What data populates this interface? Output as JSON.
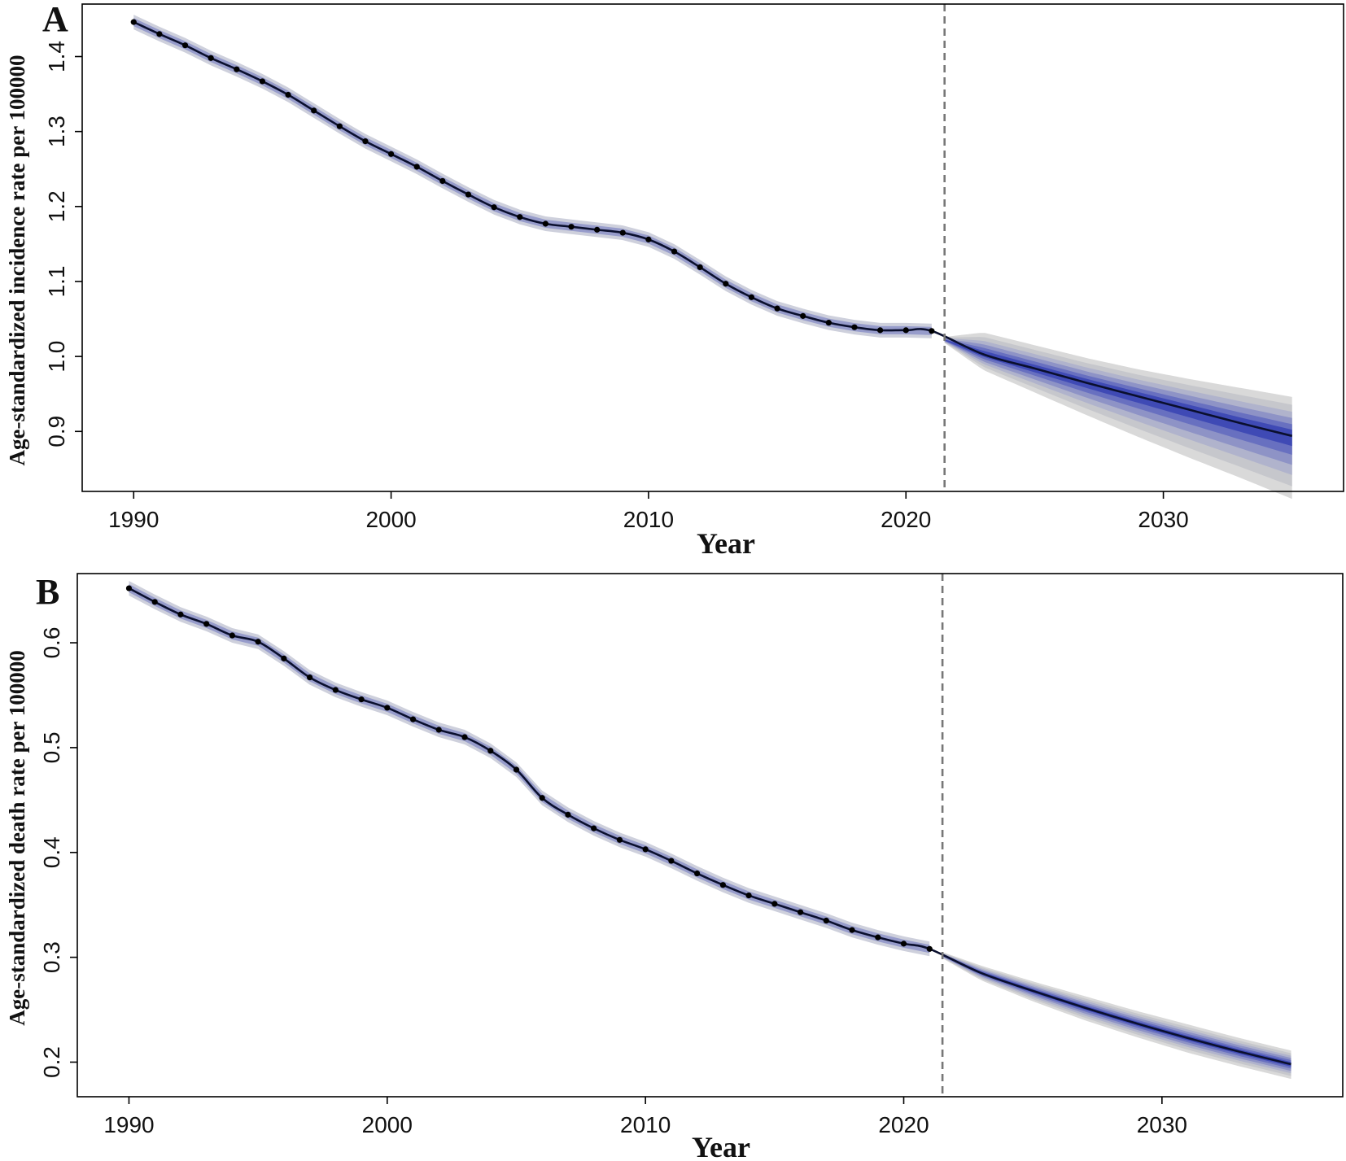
{
  "chart_data": [
    {
      "type": "line",
      "panel_label": "A",
      "xlabel": "Year",
      "ylabel": "Age-standardized incidence rate per 100000",
      "xlim": [
        1988,
        2037
      ],
      "ylim": [
        0.82,
        1.47
      ],
      "x_ticks": [
        1990,
        2000,
        2010,
        2020,
        2030
      ],
      "y_ticks": [
        0.9,
        1.0,
        1.1,
        1.2,
        1.3,
        1.4
      ],
      "y_tick_labels": [
        "0.9",
        "1.0",
        "1.1",
        "1.2",
        "1.3",
        "1.4"
      ],
      "projection_start": 2021.5,
      "observed": {
        "x": [
          1990,
          1991,
          1992,
          1993,
          1994,
          1995,
          1996,
          1997,
          1998,
          1999,
          2000,
          2001,
          2002,
          2003,
          2004,
          2005,
          2006,
          2007,
          2008,
          2009,
          2010,
          2011,
          2012,
          2013,
          2014,
          2015,
          2016,
          2017,
          2018,
          2019,
          2020,
          2021
        ],
        "y": [
          1.446,
          1.43,
          1.415,
          1.398,
          1.383,
          1.367,
          1.349,
          1.328,
          1.307,
          1.287,
          1.27,
          1.253,
          1.234,
          1.216,
          1.199,
          1.186,
          1.177,
          1.173,
          1.169,
          1.165,
          1.156,
          1.14,
          1.119,
          1.097,
          1.079,
          1.064,
          1.054,
          1.045,
          1.039,
          1.035,
          1.035,
          1.034
        ]
      },
      "projection": {
        "x": [
          2021.5,
          2023,
          2025,
          2027,
          2029,
          2031,
          2033,
          2035
        ],
        "y": [
          1.022,
          1.003,
          0.984,
          0.965,
          0.947,
          0.929,
          0.911,
          0.894
        ],
        "lower_95": [
          1.018,
          0.982,
          0.952,
          0.922,
          0.893,
          0.865,
          0.838,
          0.81
        ],
        "upper_95": [
          1.026,
          1.032,
          1.015,
          0.998,
          0.983,
          0.97,
          0.958,
          0.946
        ]
      }
    },
    {
      "type": "line",
      "panel_label": "B",
      "xlabel": "Year",
      "ylabel": "Age-standardized death rate per 100000",
      "xlim": [
        1988,
        2037
      ],
      "ylim": [
        0.167,
        0.666
      ],
      "x_ticks": [
        1990,
        2000,
        2010,
        2020,
        2030
      ],
      "y_ticks": [
        0.2,
        0.3,
        0.4,
        0.5,
        0.6
      ],
      "y_tick_labels": [
        "0.2",
        "0.3",
        "0.4",
        "0.5",
        "0.6"
      ],
      "projection_start": 2021.5,
      "observed": {
        "x": [
          1990,
          1991,
          1992,
          1993,
          1994,
          1995,
          1996,
          1997,
          1998,
          1999,
          2000,
          2001,
          2002,
          2003,
          2004,
          2005,
          2006,
          2007,
          2008,
          2009,
          2010,
          2011,
          2012,
          2013,
          2014,
          2015,
          2016,
          2017,
          2018,
          2019,
          2020,
          2021
        ],
        "y": [
          0.652,
          0.639,
          0.627,
          0.618,
          0.607,
          0.601,
          0.585,
          0.567,
          0.555,
          0.546,
          0.538,
          0.527,
          0.517,
          0.51,
          0.497,
          0.479,
          0.452,
          0.436,
          0.423,
          0.412,
          0.403,
          0.392,
          0.38,
          0.369,
          0.359,
          0.351,
          0.343,
          0.335,
          0.326,
          0.319,
          0.313,
          0.308
        ]
      },
      "projection": {
        "x": [
          2021.5,
          2023,
          2025,
          2027,
          2029,
          2031,
          2033,
          2035
        ],
        "y": [
          0.302,
          0.285,
          0.268,
          0.252,
          0.237,
          0.223,
          0.21,
          0.198
        ],
        "lower_95": [
          0.299,
          0.278,
          0.258,
          0.24,
          0.224,
          0.209,
          0.196,
          0.184
        ],
        "upper_95": [
          0.305,
          0.292,
          0.277,
          0.263,
          0.249,
          0.236,
          0.223,
          0.211
        ]
      }
    }
  ]
}
